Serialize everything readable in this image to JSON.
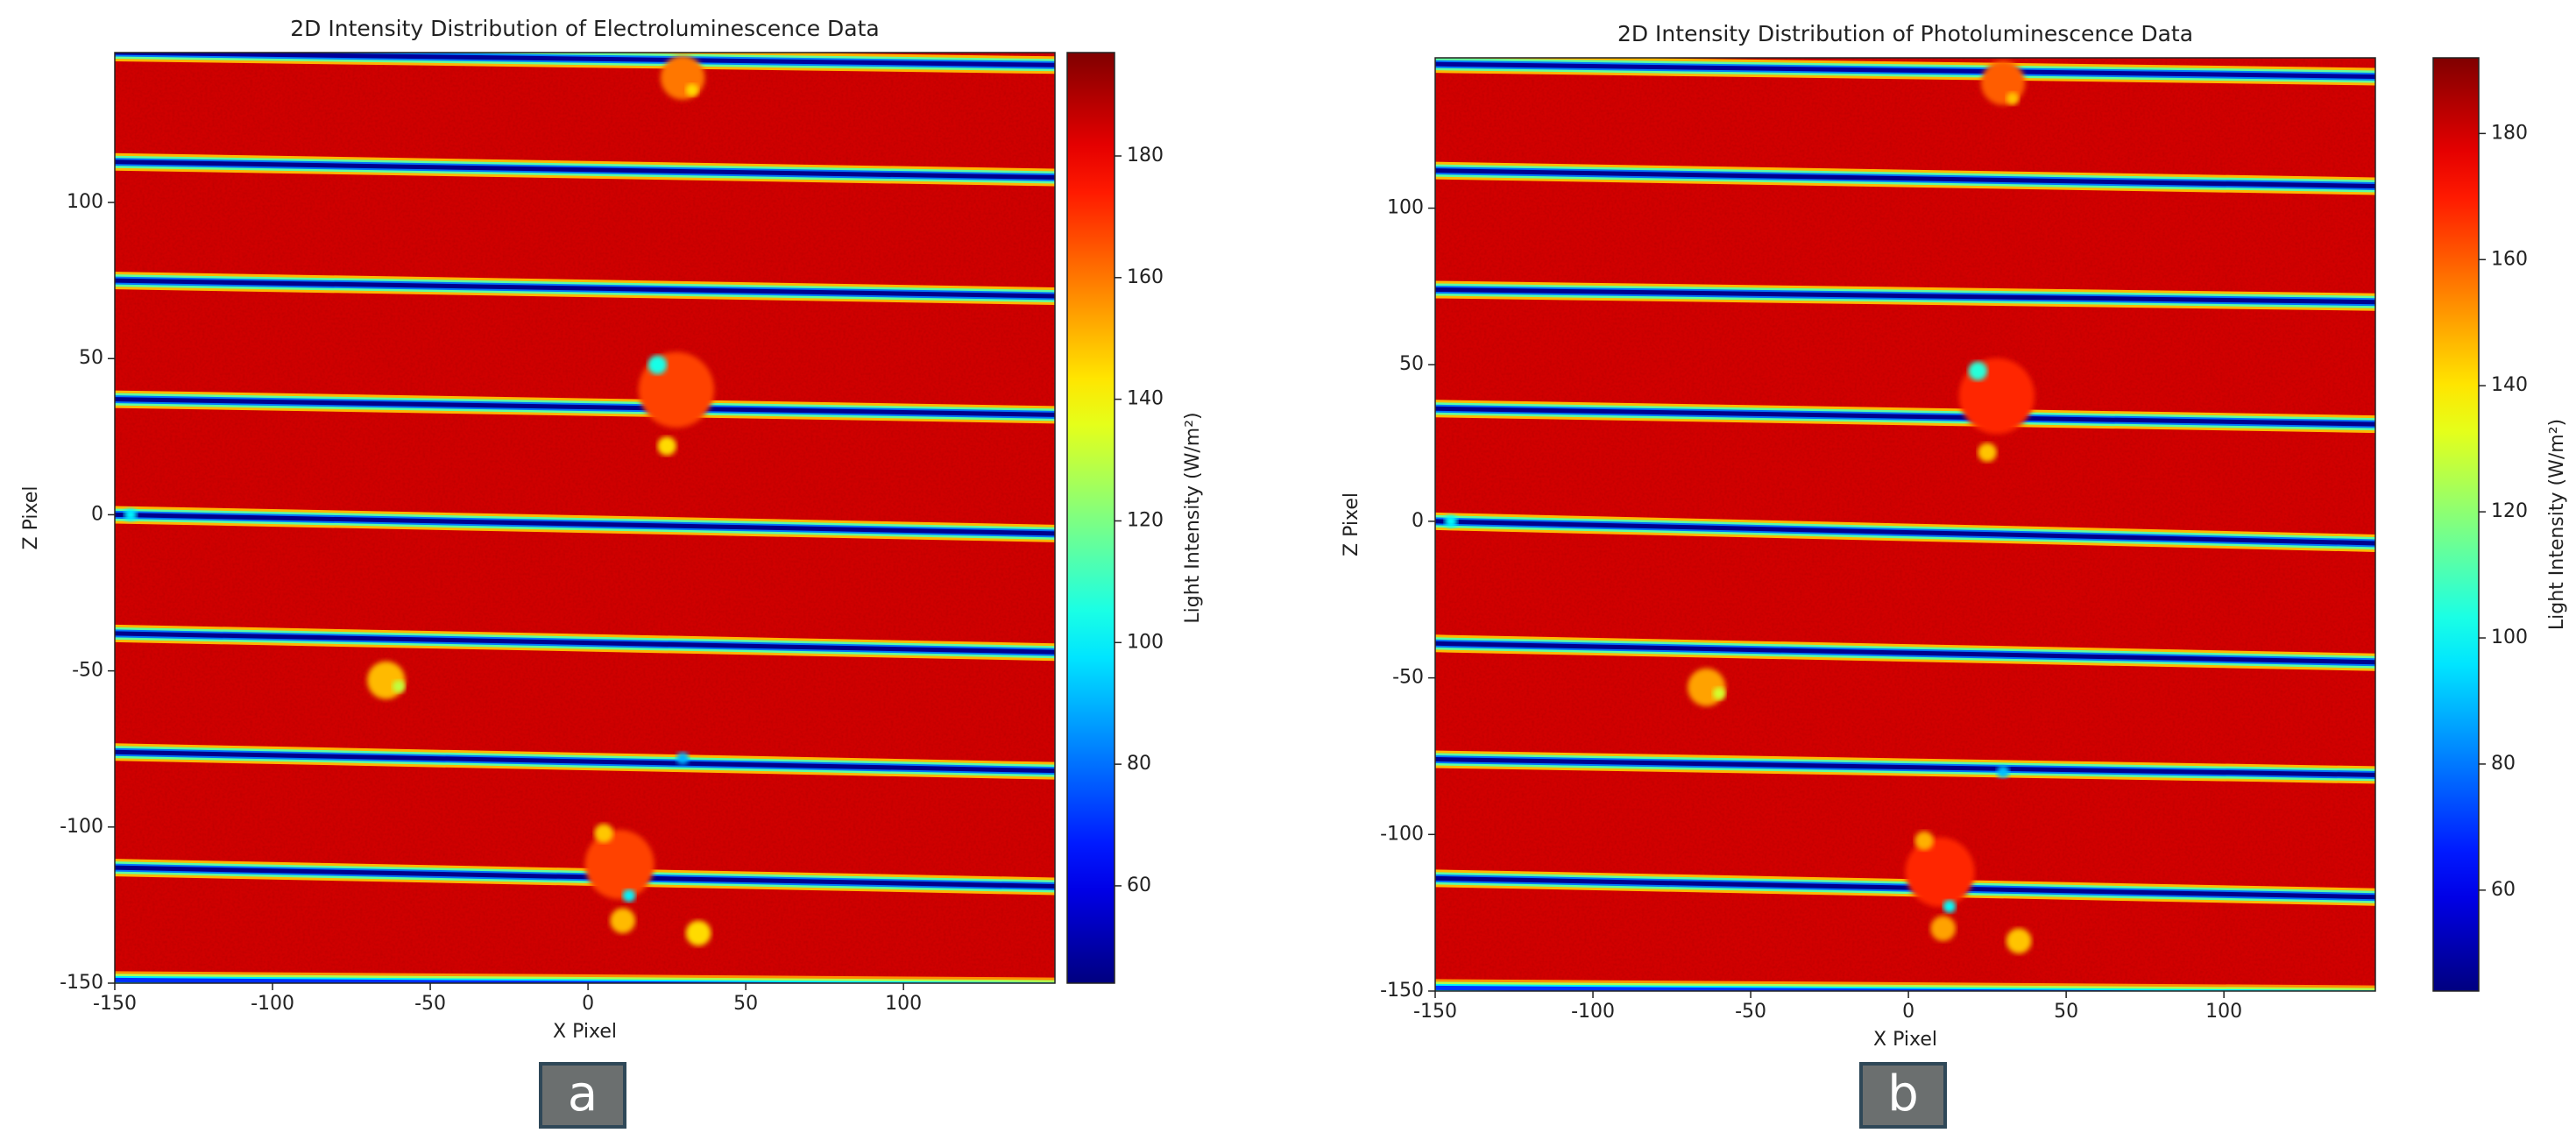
{
  "chart_data": [
    {
      "type": "heatmap",
      "title": "2D Intensity Distribution of Electroluminescence Data",
      "xlabel": "X Pixel",
      "ylabel": "Z Pixel",
      "colorbar_label": "Light Intensity (W/m²)",
      "colormap": "jet",
      "xlim": [
        -150,
        148
      ],
      "ylim": [
        -150,
        148
      ],
      "xticks": [
        -150,
        -100,
        -50,
        0,
        50,
        100
      ],
      "yticks": [
        -150,
        -100,
        -50,
        0,
        50,
        100
      ],
      "clim": [
        44,
        197
      ],
      "cticks": [
        60,
        80,
        100,
        120,
        140,
        160,
        180
      ],
      "background": 185,
      "stripes": [
        {
          "z_left": 148,
          "z_right": 144,
          "value": 48
        },
        {
          "z_left": 113,
          "z_right": 108,
          "value": 46
        },
        {
          "z_left": 75,
          "z_right": 70,
          "value": 46
        },
        {
          "z_left": 37,
          "z_right": 32,
          "value": 46
        },
        {
          "z_left": 0,
          "z_right": -6,
          "value": 46
        },
        {
          "z_left": -38,
          "z_right": -44,
          "value": 46
        },
        {
          "z_left": -76,
          "z_right": -82,
          "value": 46
        },
        {
          "z_left": -113,
          "z_right": -119,
          "value": 46
        },
        {
          "z_left": -149,
          "z_right": -151,
          "value": 70
        }
      ],
      "spots": [
        {
          "x": 30,
          "z": 140,
          "value": 160,
          "r": 7
        },
        {
          "x": 33,
          "z": 136,
          "value": 145,
          "r": 2
        },
        {
          "x": 28,
          "z": 40,
          "value": 168,
          "r": 12
        },
        {
          "x": 22,
          "z": 48,
          "value": 105,
          "r": 3
        },
        {
          "x": 25,
          "z": 22,
          "value": 145,
          "r": 3
        },
        {
          "x": -64,
          "z": -53,
          "value": 150,
          "r": 6
        },
        {
          "x": -60,
          "z": -55,
          "value": 130,
          "r": 2
        },
        {
          "x": 10,
          "z": -112,
          "value": 168,
          "r": 11
        },
        {
          "x": 5,
          "z": -102,
          "value": 148,
          "r": 3
        },
        {
          "x": 13,
          "z": -122,
          "value": 100,
          "r": 2
        },
        {
          "x": 11,
          "z": -130,
          "value": 150,
          "r": 4
        },
        {
          "x": 35,
          "z": -134,
          "value": 145,
          "r": 4
        },
        {
          "x": -145,
          "z": 0,
          "value": 100,
          "r": 2
        },
        {
          "x": 30,
          "z": -78,
          "value": 90,
          "r": 2
        }
      ],
      "panel_label": "a"
    },
    {
      "type": "heatmap",
      "title": "2D Intensity Distribution of Photoluminescence Data",
      "xlabel": "X Pixel",
      "ylabel": "Z Pixel",
      "colorbar_label": "Light Intensity (W/m²)",
      "colormap": "jet",
      "xlim": [
        -150,
        148
      ],
      "ylim": [
        -150,
        148
      ],
      "xticks": [
        -150,
        -100,
        -50,
        0,
        50,
        100
      ],
      "yticks": [
        -150,
        -100,
        -50,
        0,
        50,
        100
      ],
      "clim": [
        44,
        192
      ],
      "cticks": [
        60,
        80,
        100,
        120,
        140,
        160,
        180
      ],
      "background": 180,
      "stripes": [
        {
          "z_left": 146,
          "z_right": 142,
          "value": 48
        },
        {
          "z_left": 112,
          "z_right": 107,
          "value": 46
        },
        {
          "z_left": 74,
          "z_right": 70,
          "value": 46
        },
        {
          "z_left": 36,
          "z_right": 31,
          "value": 46
        },
        {
          "z_left": 0,
          "z_right": -7,
          "value": 46
        },
        {
          "z_left": -39,
          "z_right": -45,
          "value": 46
        },
        {
          "z_left": -76,
          "z_right": -81,
          "value": 46
        },
        {
          "z_left": -114,
          "z_right": -120,
          "value": 46
        },
        {
          "z_left": -149,
          "z_right": -151,
          "value": 70
        }
      ],
      "spots": [
        {
          "x": 30,
          "z": 140,
          "value": 160,
          "r": 7
        },
        {
          "x": 33,
          "z": 135,
          "value": 145,
          "r": 2
        },
        {
          "x": 28,
          "z": 40,
          "value": 168,
          "r": 12
        },
        {
          "x": 22,
          "z": 48,
          "value": 105,
          "r": 3
        },
        {
          "x": 25,
          "z": 22,
          "value": 145,
          "r": 3
        },
        {
          "x": -64,
          "z": -53,
          "value": 150,
          "r": 6
        },
        {
          "x": -60,
          "z": -55,
          "value": 130,
          "r": 2
        },
        {
          "x": 10,
          "z": -112,
          "value": 168,
          "r": 11
        },
        {
          "x": 5,
          "z": -102,
          "value": 148,
          "r": 3
        },
        {
          "x": 13,
          "z": -123,
          "value": 100,
          "r": 2
        },
        {
          "x": 11,
          "z": -130,
          "value": 150,
          "r": 4
        },
        {
          "x": 35,
          "z": -134,
          "value": 145,
          "r": 4
        },
        {
          "x": -145,
          "z": 0,
          "value": 100,
          "r": 2
        },
        {
          "x": 30,
          "z": -80,
          "value": 90,
          "r": 2
        }
      ],
      "panel_label": "b"
    }
  ]
}
